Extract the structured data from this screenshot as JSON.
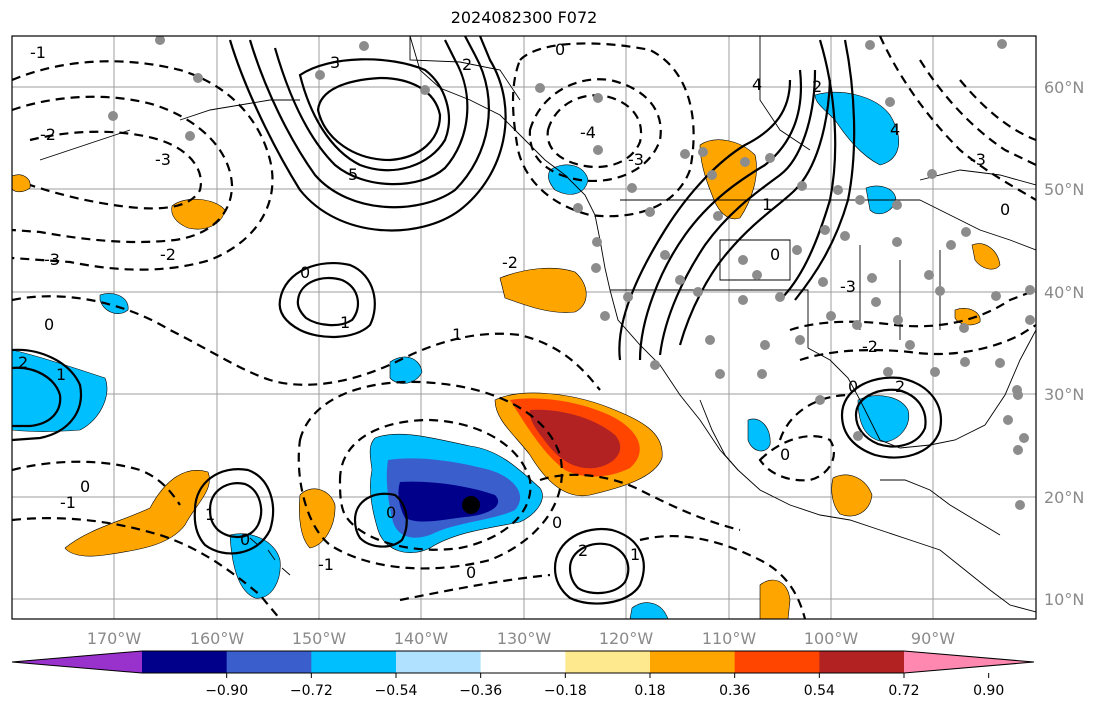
{
  "title": "2024082300 F072",
  "map": {
    "projection": "PlateCarree",
    "lon_range": [
      -180,
      -80
    ],
    "lat_range": [
      8,
      65
    ],
    "grid": true,
    "lon_labels": [
      "170°W",
      "160°W",
      "150°W",
      "140°W",
      "130°W",
      "120°W",
      "110°W",
      "100°W",
      "90°W"
    ],
    "lat_labels": [
      "60°N",
      "50°N",
      "40°N",
      "30°N",
      "20°N",
      "10°N"
    ],
    "contour_labels": [
      "1",
      "2",
      "3",
      "5",
      "0",
      "-1",
      "-2",
      "-3",
      "-4",
      "4"
    ],
    "colors": {
      "neg_strong": "#00008b",
      "neg_med": "#3a5fcd",
      "neg": "#00bfff",
      "neg_light": "#b0e2ff",
      "pos_light": "#ffe98f",
      "pos": "#ffa500",
      "pos_med": "#ff4500",
      "pos_strong": "#b22222"
    }
  },
  "colorbar": {
    "ticks": [
      "−0.90",
      "−0.72",
      "−0.54",
      "−0.36",
      "−0.18",
      "0.18",
      "0.36",
      "0.54",
      "0.72",
      "0.90"
    ],
    "colors": [
      "#9932cc",
      "#00008b",
      "#3a5fcd",
      "#00bfff",
      "#b0e2ff",
      "#ffffff",
      "#ffe98f",
      "#ffa500",
      "#ff4500",
      "#b22222",
      "#ff88b0"
    ],
    "extend": "both"
  }
}
